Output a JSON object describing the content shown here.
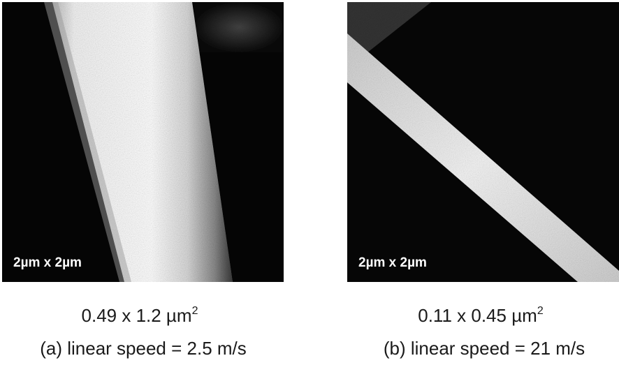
{
  "panels": [
    {
      "id": "a",
      "scale_label": "2µm x 2µm",
      "area_value": "0.49 x 1.2 µm",
      "area_exponent": "2",
      "speed_caption": "(a) linear speed = 2.5 m/s"
    },
    {
      "id": "b",
      "scale_label": "2µm x 2µm",
      "area_value": "0.11 x 0.45 µm",
      "area_exponent": "2",
      "speed_caption": "(b) linear speed = 21 m/s"
    }
  ]
}
